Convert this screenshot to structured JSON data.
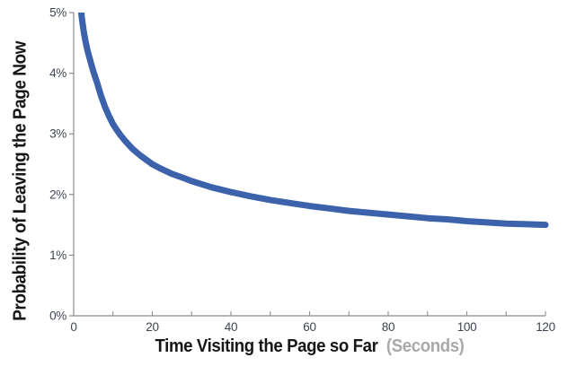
{
  "chart_data": {
    "type": "line",
    "title": "",
    "xlabel": "Time Visiting the Page so Far",
    "xlabel_unit": "(Seconds)",
    "ylabel": "Probability of Leaving the Page Now",
    "xlim": [
      0,
      120
    ],
    "ylim": [
      0,
      5
    ],
    "x_ticks": [
      0,
      20,
      40,
      60,
      80,
      100,
      120
    ],
    "x_minor_tick_interval": 10,
    "y_ticks": [
      "0%",
      "1%",
      "2%",
      "3%",
      "4%",
      "5%"
    ],
    "y_tick_values": [
      0,
      1,
      2,
      3,
      4,
      5
    ],
    "grid": false,
    "legend": null,
    "line_color": "#3B62AB",
    "axis_color": "#8C8C8C",
    "tick_label_color": "#3E4450",
    "title_color": "#161616",
    "unit_color": "#A9A9A9",
    "note": "curve clipped at top of plot (5%)",
    "series": [
      {
        "name": "probability-of-leaving",
        "points": [
          [
            1.6,
            5.4
          ],
          [
            1.8,
            5.12
          ],
          [
            2.0,
            4.95
          ],
          [
            2.3,
            4.8
          ],
          [
            2.6,
            4.67
          ],
          [
            3.0,
            4.53
          ],
          [
            3.5,
            4.38
          ],
          [
            4.0,
            4.26
          ],
          [
            4.5,
            4.14
          ],
          [
            5.0,
            4.03
          ],
          [
            5.5,
            3.93
          ],
          [
            6.0,
            3.83
          ],
          [
            7.0,
            3.62
          ],
          [
            8.0,
            3.44
          ],
          [
            9.0,
            3.29
          ],
          [
            10,
            3.16
          ],
          [
            11,
            3.06
          ],
          [
            12,
            2.97
          ],
          [
            13,
            2.89
          ],
          [
            14,
            2.82
          ],
          [
            15,
            2.75
          ],
          [
            17,
            2.64
          ],
          [
            20,
            2.5
          ],
          [
            22,
            2.43
          ],
          [
            25,
            2.34
          ],
          [
            28,
            2.27
          ],
          [
            30,
            2.22
          ],
          [
            35,
            2.12
          ],
          [
            40,
            2.04
          ],
          [
            45,
            1.97
          ],
          [
            50,
            1.91
          ],
          [
            55,
            1.86
          ],
          [
            60,
            1.81
          ],
          [
            65,
            1.77
          ],
          [
            70,
            1.73
          ],
          [
            75,
            1.7
          ],
          [
            80,
            1.67
          ],
          [
            85,
            1.64
          ],
          [
            90,
            1.61
          ],
          [
            95,
            1.59
          ],
          [
            100,
            1.56
          ],
          [
            105,
            1.54
          ],
          [
            110,
            1.52
          ],
          [
            115,
            1.51
          ],
          [
            120,
            1.5
          ]
        ]
      }
    ]
  }
}
